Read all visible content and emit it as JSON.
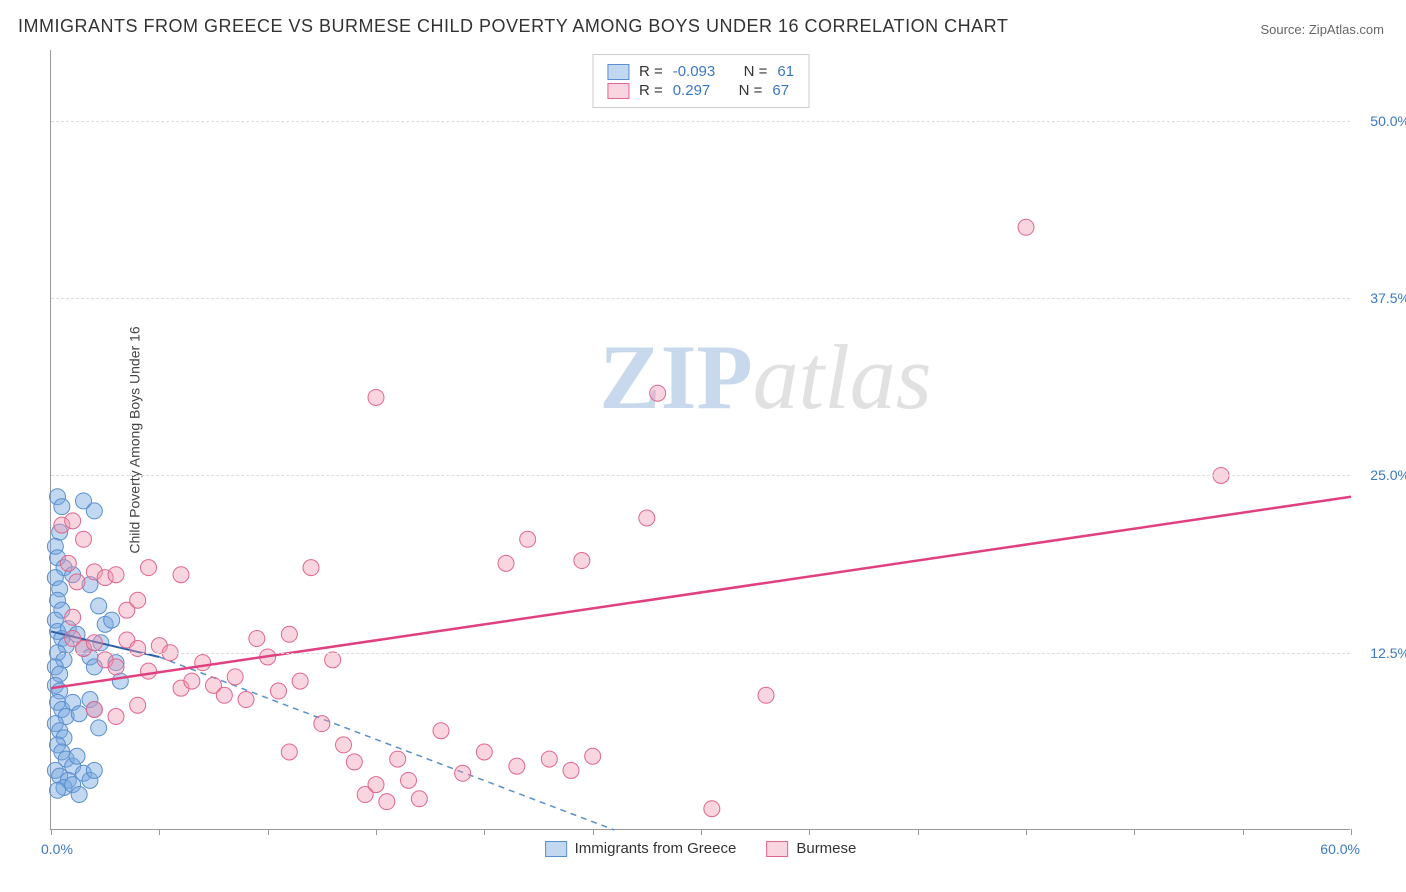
{
  "title": "IMMIGRANTS FROM GREECE VS BURMESE CHILD POVERTY AMONG BOYS UNDER 16 CORRELATION CHART",
  "source_prefix": "Source: ",
  "source_name": "ZipAtlas.com",
  "watermark_a": "ZIP",
  "watermark_b": "atlas",
  "chart": {
    "type": "scatter",
    "xlim": [
      0,
      60
    ],
    "ylim": [
      0,
      55
    ],
    "x_origin_label": "0.0%",
    "x_max_label": "60.0%",
    "y_ticks": [
      12.5,
      25.0,
      37.5,
      50.0
    ],
    "y_tick_labels": [
      "12.5%",
      "25.0%",
      "37.5%",
      "50.0%"
    ],
    "x_tick_step": 5,
    "y_axis_label": "Child Poverty Among Boys Under 16",
    "background_color": "#ffffff",
    "grid_color": "#dddddd",
    "axis_color": "#999999",
    "tick_label_color": "#3b78c4",
    "series": [
      {
        "name": "Immigrants from Greece",
        "legend_key": "greece",
        "fill": "rgba(120,168,224,0.45)",
        "stroke": "#5a8fcf",
        "trend_solid": {
          "x1": 0,
          "y1": 14.0,
          "x2": 5,
          "y2": 12.2,
          "color": "#2f5fa8",
          "width": 2
        },
        "trend_dash": {
          "x1": 5,
          "y1": 12.2,
          "x2": 26,
          "y2": 0,
          "color": "#5a8fcf",
          "width": 1.5
        },
        "R": -0.093,
        "N": 61,
        "points": [
          [
            0.3,
            23.5
          ],
          [
            0.5,
            22.8
          ],
          [
            1.5,
            23.2
          ],
          [
            2.0,
            22.5
          ],
          [
            0.4,
            21.0
          ],
          [
            0.2,
            20.0
          ],
          [
            0.3,
            19.2
          ],
          [
            0.6,
            18.5
          ],
          [
            0.2,
            17.8
          ],
          [
            0.4,
            17.0
          ],
          [
            0.3,
            16.2
          ],
          [
            0.5,
            15.5
          ],
          [
            1.0,
            18.0
          ],
          [
            1.8,
            17.3
          ],
          [
            2.2,
            15.8
          ],
          [
            2.5,
            14.5
          ],
          [
            0.2,
            14.8
          ],
          [
            0.3,
            14.0
          ],
          [
            0.5,
            13.5
          ],
          [
            0.7,
            13.0
          ],
          [
            0.3,
            12.5
          ],
          [
            0.6,
            12.0
          ],
          [
            0.2,
            11.5
          ],
          [
            0.4,
            11.0
          ],
          [
            0.8,
            14.2
          ],
          [
            1.2,
            13.8
          ],
          [
            1.5,
            12.8
          ],
          [
            1.8,
            12.2
          ],
          [
            2.0,
            11.5
          ],
          [
            2.3,
            13.2
          ],
          [
            2.8,
            14.8
          ],
          [
            3.0,
            11.8
          ],
          [
            3.2,
            10.5
          ],
          [
            0.2,
            10.2
          ],
          [
            0.4,
            9.8
          ],
          [
            0.3,
            9.0
          ],
          [
            0.5,
            8.5
          ],
          [
            0.7,
            8.0
          ],
          [
            0.2,
            7.5
          ],
          [
            0.4,
            7.0
          ],
          [
            0.6,
            6.5
          ],
          [
            1.0,
            9.0
          ],
          [
            1.3,
            8.2
          ],
          [
            1.8,
            9.2
          ],
          [
            2.0,
            8.5
          ],
          [
            2.2,
            7.2
          ],
          [
            0.3,
            6.0
          ],
          [
            0.5,
            5.5
          ],
          [
            0.7,
            5.0
          ],
          [
            1.0,
            4.5
          ],
          [
            1.2,
            5.2
          ],
          [
            0.2,
            4.2
          ],
          [
            0.4,
            3.8
          ],
          [
            0.8,
            3.5
          ],
          [
            1.5,
            4.0
          ],
          [
            1.8,
            3.5
          ],
          [
            2.0,
            4.2
          ],
          [
            0.6,
            3.0
          ],
          [
            1.0,
            3.2
          ],
          [
            0.3,
            2.8
          ],
          [
            1.3,
            2.5
          ]
        ]
      },
      {
        "name": "Burmese",
        "legend_key": "burmese",
        "fill": "rgba(240,150,175,0.40)",
        "stroke": "#e06790",
        "trend_solid": {
          "x1": 0,
          "y1": 10.0,
          "x2": 60,
          "y2": 23.5,
          "color": "#e04080",
          "width": 2.5
        },
        "trend_dash": null,
        "R": 0.297,
        "N": 67,
        "points": [
          [
            0.5,
            21.5
          ],
          [
            1.5,
            20.5
          ],
          [
            0.8,
            18.8
          ],
          [
            1.2,
            17.5
          ],
          [
            2.0,
            18.2
          ],
          [
            1.0,
            15.0
          ],
          [
            2.5,
            17.8
          ],
          [
            3.0,
            18.0
          ],
          [
            3.5,
            15.5
          ],
          [
            4.0,
            16.2
          ],
          [
            1.0,
            13.5
          ],
          [
            1.5,
            12.8
          ],
          [
            2.0,
            13.2
          ],
          [
            2.5,
            12.0
          ],
          [
            3.0,
            11.5
          ],
          [
            3.5,
            13.4
          ],
          [
            4.0,
            12.8
          ],
          [
            4.5,
            11.2
          ],
          [
            5.0,
            13.0
          ],
          [
            5.5,
            12.5
          ],
          [
            6.0,
            10.0
          ],
          [
            6.5,
            10.5
          ],
          [
            7.0,
            11.8
          ],
          [
            7.5,
            10.2
          ],
          [
            8.0,
            9.5
          ],
          [
            8.5,
            10.8
          ],
          [
            9.0,
            9.2
          ],
          [
            9.5,
            13.5
          ],
          [
            10.0,
            12.2
          ],
          [
            10.5,
            9.8
          ],
          [
            11.0,
            13.8
          ],
          [
            11.5,
            10.5
          ],
          [
            12.0,
            18.5
          ],
          [
            13.0,
            12.0
          ],
          [
            12.5,
            7.5
          ],
          [
            11.0,
            5.5
          ],
          [
            13.5,
            6.0
          ],
          [
            14.0,
            4.8
          ],
          [
            14.5,
            2.5
          ],
          [
            15.0,
            3.2
          ],
          [
            15.5,
            2.0
          ],
          [
            16.0,
            5.0
          ],
          [
            16.5,
            3.5
          ],
          [
            17.0,
            2.2
          ],
          [
            18.0,
            7.0
          ],
          [
            19.0,
            4.0
          ],
          [
            20.0,
            5.5
          ],
          [
            21.0,
            18.8
          ],
          [
            21.5,
            4.5
          ],
          [
            22.0,
            20.5
          ],
          [
            23.0,
            5.0
          ],
          [
            24.0,
            4.2
          ],
          [
            25.0,
            5.2
          ],
          [
            15.0,
            30.5
          ],
          [
            28.0,
            30.8
          ],
          [
            27.5,
            22.0
          ],
          [
            24.5,
            19.0
          ],
          [
            30.5,
            1.5
          ],
          [
            33.0,
            9.5
          ],
          [
            45.0,
            42.5
          ],
          [
            54.0,
            25.0
          ],
          [
            4.5,
            18.5
          ],
          [
            6.0,
            18.0
          ],
          [
            1.0,
            21.8
          ],
          [
            2.0,
            8.5
          ],
          [
            3.0,
            8.0
          ],
          [
            4.0,
            8.8
          ]
        ]
      }
    ]
  },
  "legend_top": {
    "R_label": "R = ",
    "N_label": "N = "
  },
  "legend_bottom_labels": {
    "greece": "Immigrants from Greece",
    "burmese": "Burmese"
  }
}
